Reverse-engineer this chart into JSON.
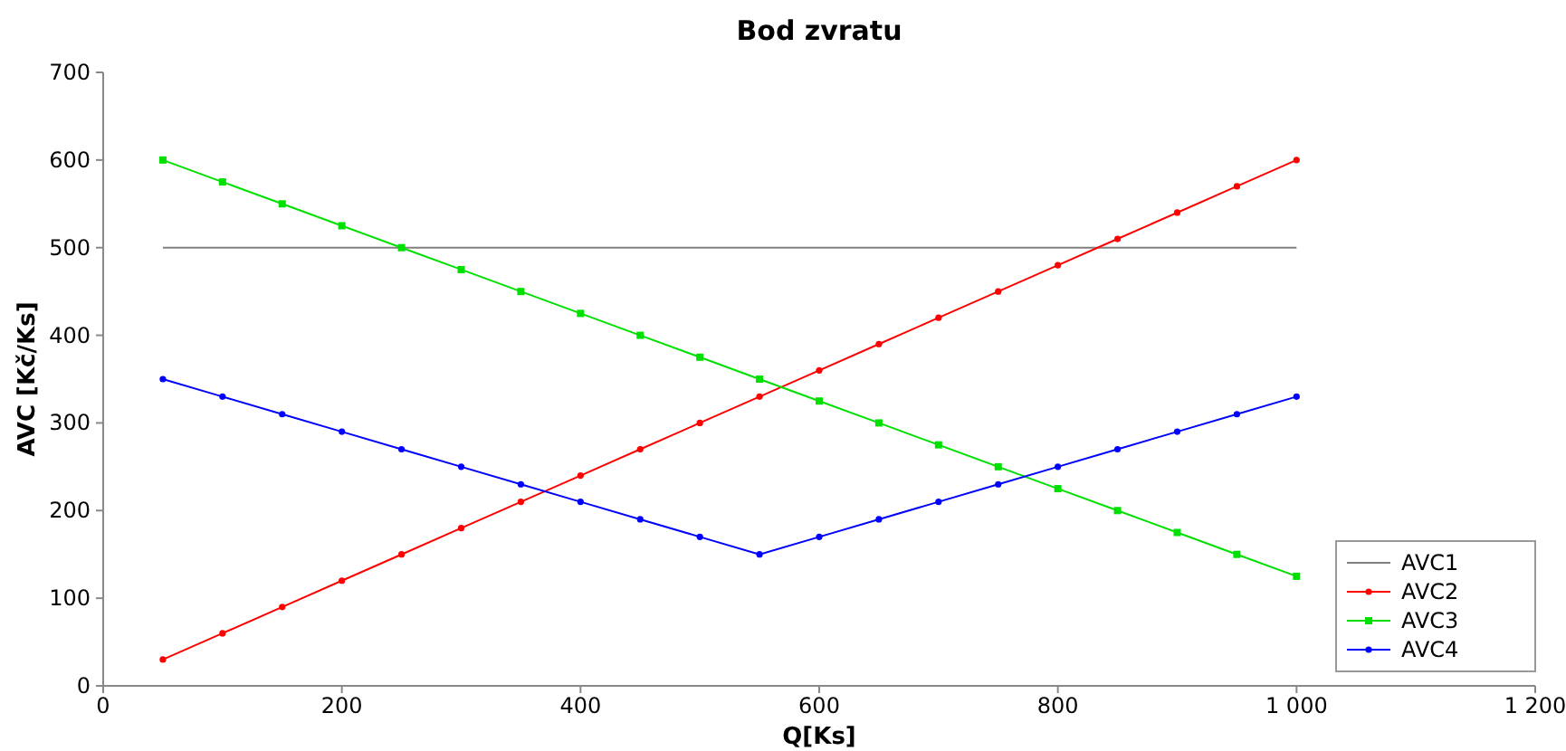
{
  "chart_data": {
    "type": "line",
    "title": "Bod zvratu",
    "xlabel": "Q[Ks]",
    "ylabel": "AVC [Kč/Ks]",
    "x": [
      50,
      100,
      150,
      200,
      250,
      300,
      350,
      400,
      450,
      500,
      550,
      600,
      650,
      700,
      750,
      800,
      850,
      900,
      950,
      1000
    ],
    "xlim": [
      0,
      1200
    ],
    "xticks": [
      0,
      200,
      400,
      600,
      800,
      {
        "value": 1000,
        "label": "1 000"
      },
      {
        "value": 1200,
        "label": "1 200"
      }
    ],
    "ylim": [
      0,
      700
    ],
    "yticks": [
      0,
      100,
      200,
      300,
      400,
      500,
      600,
      700
    ],
    "grid": false,
    "legend": "bottom right",
    "series": [
      {
        "name": "AVC1",
        "color": "#808080",
        "marker": "none",
        "values": [
          500,
          500,
          500,
          500,
          500,
          500,
          500,
          500,
          500,
          500,
          500,
          500,
          500,
          500,
          500,
          500,
          500,
          500,
          500,
          500
        ]
      },
      {
        "name": "AVC2",
        "color": "#ff0000",
        "marker": "circle",
        "values": [
          30,
          60,
          90,
          120,
          150,
          180,
          210,
          240,
          270,
          300,
          330,
          360,
          390,
          420,
          450,
          480,
          510,
          540,
          570,
          600
        ]
      },
      {
        "name": "AVC3",
        "color": "#00e000",
        "marker": "square",
        "values": [
          600,
          575,
          550,
          525,
          500,
          475,
          450,
          425,
          400,
          375,
          350,
          325,
          300,
          275,
          250,
          225,
          200,
          175,
          150,
          125
        ]
      },
      {
        "name": "AVC4",
        "color": "#0000ff",
        "marker": "circle",
        "values": [
          350,
          330,
          310,
          290,
          270,
          250,
          230,
          210,
          190,
          170,
          150,
          170,
          190,
          210,
          230,
          250,
          270,
          290,
          310,
          330
        ]
      }
    ]
  }
}
